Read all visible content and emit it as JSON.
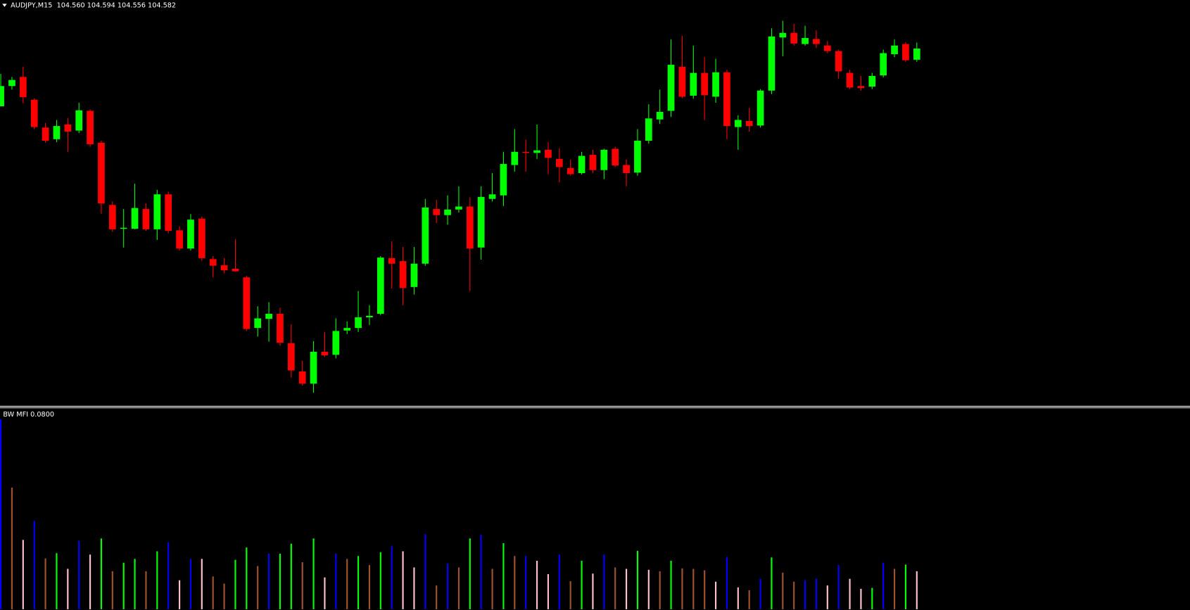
{
  "chart_data": [
    {
      "type": "candlestick",
      "title": "AUDJPY,M15  104.560 104.594 104.556 104.582",
      "open": [
        104.468,
        104.508,
        104.526,
        104.481,
        104.426,
        104.403,
        104.432,
        104.42,
        104.459,
        104.396,
        104.273,
        104.226,
        104.226,
        104.265,
        104.225,
        104.294,
        104.223,
        104.187,
        104.246,
        104.166,
        104.154,
        104.147,
        104.13,
        104.03,
        104.048,
        104.058,
        104.0,
        103.944,
        103.92,
        103.983,
        103.977,
        104.025,
        104.03,
        104.051,
        104.058,
        104.168,
        104.162,
        104.111,
        104.157,
        104.265,
        104.253,
        104.264,
        104.27,
        104.189,
        104.285,
        104.292,
        104.352,
        104.378,
        104.376,
        104.382,
        104.364,
        104.346,
        104.336,
        104.372,
        104.342,
        104.384,
        104.352,
        104.337,
        104.4,
        104.442,
        104.459,
        104.546,
        104.489,
        104.534,
        104.487,
        104.535,
        104.427,
        104.439,
        104.43,
        104.499,
        104.604,
        104.613,
        104.591,
        104.601,
        104.588,
        104.577,
        104.534,
        104.508,
        104.507,
        104.529,
        104.571,
        104.591,
        104.56
      ],
      "high": [
        104.532,
        104.526,
        104.546,
        104.484,
        104.435,
        104.441,
        104.445,
        104.475,
        104.462,
        104.4,
        104.28,
        104.265,
        104.315,
        104.276,
        104.303,
        104.299,
        104.231,
        104.255,
        104.25,
        104.172,
        104.168,
        104.205,
        104.133,
        104.073,
        104.081,
        104.07,
        104.037,
        103.965,
        104.004,
        104.022,
        104.049,
        104.043,
        104.103,
        104.075,
        104.172,
        104.201,
        104.19,
        104.19,
        104.285,
        104.283,
        104.292,
        104.31,
        104.288,
        104.31,
        104.336,
        104.378,
        104.423,
        104.402,
        104.432,
        104.397,
        104.385,
        104.363,
        104.378,
        104.382,
        104.384,
        104.388,
        104.363,
        104.423,
        104.472,
        104.501,
        104.6,
        104.607,
        104.588,
        104.565,
        104.562,
        104.54,
        104.45,
        104.465,
        104.502,
        104.622,
        104.637,
        104.631,
        104.627,
        104.618,
        104.597,
        104.58,
        104.54,
        104.528,
        104.534,
        104.58,
        104.6,
        104.595,
        104.594
      ],
      "low": [
        104.468,
        104.501,
        104.474,
        104.423,
        104.396,
        104.397,
        104.378,
        104.415,
        104.388,
        104.256,
        104.22,
        104.189,
        104.225,
        104.222,
        104.204,
        104.217,
        104.183,
        104.183,
        104.163,
        104.13,
        104.138,
        104.141,
        104.024,
        104.013,
        104.003,
        103.995,
        103.932,
        103.916,
        103.902,
        103.973,
        103.97,
        104.018,
        104.022,
        104.036,
        104.055,
        104.108,
        104.075,
        104.096,
        104.153,
        104.237,
        104.234,
        104.258,
        104.103,
        104.165,
        104.28,
        104.271,
        104.339,
        104.339,
        104.364,
        104.334,
        104.318,
        104.331,
        104.333,
        104.336,
        104.324,
        104.348,
        104.31,
        104.331,
        104.394,
        104.433,
        104.447,
        104.484,
        104.483,
        104.441,
        104.475,
        104.403,
        104.382,
        104.418,
        104.426,
        104.492,
        104.567,
        104.588,
        104.588,
        104.583,
        104.573,
        104.522,
        104.502,
        104.499,
        104.502,
        104.525,
        104.565,
        104.556,
        104.556
      ],
      "close": [
        104.508,
        104.52,
        104.486,
        104.427,
        104.4,
        104.429,
        104.418,
        104.46,
        104.393,
        104.276,
        104.225,
        104.228,
        104.267,
        104.225,
        104.294,
        104.222,
        104.187,
        104.244,
        104.168,
        104.153,
        104.144,
        104.142,
        104.028,
        104.049,
        104.058,
        104.001,
        103.946,
        103.92,
        103.983,
        103.976,
        104.024,
        104.03,
        104.051,
        104.054,
        104.169,
        104.157,
        104.109,
        104.157,
        104.268,
        104.253,
        104.264,
        104.27,
        104.187,
        104.289,
        104.294,
        104.354,
        104.378,
        104.376,
        104.381,
        104.366,
        104.348,
        104.334,
        104.37,
        104.342,
        104.382,
        104.351,
        104.336,
        104.4,
        104.444,
        104.457,
        104.55,
        104.487,
        104.534,
        104.49,
        104.535,
        104.429,
        104.441,
        104.429,
        104.499,
        104.606,
        104.613,
        104.592,
        104.603,
        104.591,
        104.577,
        104.537,
        104.505,
        104.504,
        104.528,
        104.573,
        104.588,
        104.559,
        104.582
      ],
      "up_color": "#00ff00",
      "down_color": "#ff0000",
      "ylim": [
        103.876,
        104.678
      ]
    },
    {
      "type": "bar",
      "title": "BW MFI 0.0800",
      "values": [
        0.4,
        0.256,
        0.146,
        0.186,
        0.107,
        0.118,
        0.085,
        0.144,
        0.115,
        0.149,
        0.08,
        0.098,
        0.106,
        0.08,
        0.122,
        0.141,
        0.061,
        0.106,
        0.106,
        0.069,
        0.054,
        0.104,
        0.13,
        0.091,
        0.117,
        0.117,
        0.138,
        0.099,
        0.149,
        0.067,
        0.117,
        0.106,
        0.112,
        0.093,
        0.12,
        0.133,
        0.122,
        0.088,
        0.158,
        0.05,
        0.096,
        0.088,
        0.149,
        0.157,
        0.085,
        0.139,
        0.112,
        0.112,
        0.102,
        0.074,
        0.115,
        0.059,
        0.102,
        0.075,
        0.115,
        0.088,
        0.085,
        0.123,
        0.083,
        0.08,
        0.102,
        0.086,
        0.085,
        0.082,
        0.058,
        0.11,
        0.046,
        0.04,
        0.064,
        0.109,
        0.077,
        0.058,
        0.061,
        0.064,
        0.05,
        0.093,
        0.064,
        0.043,
        0.045,
        0.098,
        0.085,
        0.094,
        0.08
      ],
      "colors": [
        "#0000ff",
        "#a0522d",
        "#ffc0cb",
        "#0000ff",
        "#a0522d",
        "#00ff00",
        "#ffc0cb",
        "#0000ff",
        "#ffc0cb",
        "#00ff00",
        "#a0522d",
        "#00ff00",
        "#00ff00",
        "#a0522d",
        "#00ff00",
        "#0000ff",
        "#ffc0cb",
        "#0000ff",
        "#ffc0cb",
        "#a0522d",
        "#a0522d",
        "#00ff00",
        "#00ff00",
        "#a0522d",
        "#0000ff",
        "#00ff00",
        "#00ff00",
        "#a0522d",
        "#00ff00",
        "#ffc0cb",
        "#0000ff",
        "#a0522d",
        "#00ff00",
        "#a0522d",
        "#00ff00",
        "#0000ff",
        "#ffc0cb",
        "#ffc0cb",
        "#0000ff",
        "#a0522d",
        "#0000ff",
        "#a0522d",
        "#00ff00",
        "#0000ff",
        "#a0522d",
        "#00ff00",
        "#a0522d",
        "#0000ff",
        "#ffc0cb",
        "#ffc0cb",
        "#0000ff",
        "#a0522d",
        "#00ff00",
        "#ffc0cb",
        "#0000ff",
        "#a0522d",
        "#ffc0cb",
        "#00ff00",
        "#ffc0cb",
        "#a0522d",
        "#00ff00",
        "#a0522d",
        "#a0522d",
        "#a0522d",
        "#ffc0cb",
        "#0000ff",
        "#ffc0cb",
        "#a0522d",
        "#0000ff",
        "#00ff00",
        "#a0522d",
        "#a0522d",
        "#0000ff",
        "#0000ff",
        "#ffc0cb",
        "#0000ff",
        "#ffc0cb",
        "#ffc0cb",
        "#00ff00",
        "#0000ff",
        "#a0522d",
        "#00ff00",
        "#ffc0cb"
      ],
      "ylim": [
        0,
        0.42
      ]
    }
  ]
}
